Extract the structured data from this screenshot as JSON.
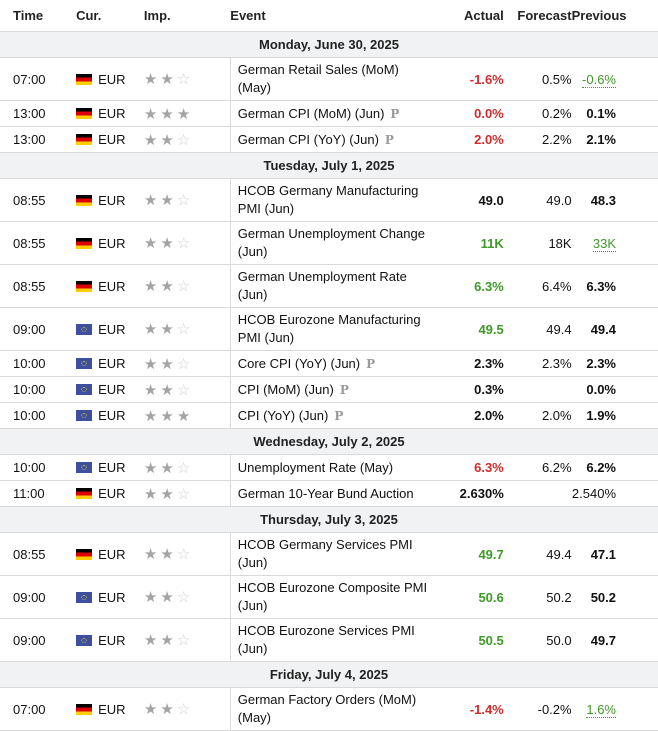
{
  "header": {
    "time": "Time",
    "currency": "Cur.",
    "importance": "Imp.",
    "event": "Event",
    "actual": "Actual",
    "forecast": "Forecast",
    "previous": "Previous"
  },
  "prelim_marker": "P",
  "days": [
    {
      "label": "Monday, June 30, 2025",
      "events": [
        {
          "time": "07:00",
          "flag": "de",
          "currency": "EUR",
          "stars": 2,
          "name": "German Retail Sales (MoM) (May)",
          "prelim": false,
          "actual": "-1.6%",
          "actual_color": "red",
          "forecast": "0.5%",
          "previous": "-0.6%",
          "previous_style": "green-dotted",
          "lines": 2
        },
        {
          "time": "13:00",
          "flag": "de",
          "currency": "EUR",
          "stars": 3,
          "name": "German CPI (MoM) (Jun)",
          "prelim": true,
          "actual": "0.0%",
          "actual_color": "red",
          "forecast": "0.2%",
          "previous": "0.1%",
          "previous_style": "bold",
          "lines": 1
        },
        {
          "time": "13:00",
          "flag": "de",
          "currency": "EUR",
          "stars": 2,
          "name": "German CPI (YoY) (Jun)",
          "prelim": true,
          "actual": "2.0%",
          "actual_color": "red",
          "forecast": "2.2%",
          "previous": "2.1%",
          "previous_style": "bold",
          "lines": 1
        }
      ]
    },
    {
      "label": "Tuesday, July 1, 2025",
      "events": [
        {
          "time": "08:55",
          "flag": "de",
          "currency": "EUR",
          "stars": 2,
          "name": "HCOB Germany Manufacturing PMI (Jun)",
          "prelim": false,
          "actual": "49.0",
          "actual_color": "black",
          "forecast": "49.0",
          "previous": "48.3",
          "previous_style": "bold",
          "lines": 2
        },
        {
          "time": "08:55",
          "flag": "de",
          "currency": "EUR",
          "stars": 2,
          "name": "German Unemployment Change (Jun)",
          "prelim": false,
          "actual": "11K",
          "actual_color": "green",
          "forecast": "18K",
          "previous": "33K",
          "previous_style": "green-dotted",
          "lines": 2
        },
        {
          "time": "08:55",
          "flag": "de",
          "currency": "EUR",
          "stars": 2,
          "name": "German Unemployment Rate (Jun)",
          "prelim": false,
          "actual": "6.3%",
          "actual_color": "green",
          "forecast": "6.4%",
          "previous": "6.3%",
          "previous_style": "bold",
          "lines": 2
        },
        {
          "time": "09:00",
          "flag": "eu",
          "currency": "EUR",
          "stars": 2,
          "name": "HCOB Eurozone Manufacturing PMI (Jun)",
          "prelim": false,
          "actual": "49.5",
          "actual_color": "green",
          "forecast": "49.4",
          "previous": "49.4",
          "previous_style": "bold",
          "lines": 2
        },
        {
          "time": "10:00",
          "flag": "eu",
          "currency": "EUR",
          "stars": 2,
          "name": "Core CPI (YoY) (Jun)",
          "prelim": true,
          "actual": "2.3%",
          "actual_color": "black",
          "forecast": "2.3%",
          "previous": "2.3%",
          "previous_style": "bold",
          "lines": 1
        },
        {
          "time": "10:00",
          "flag": "eu",
          "currency": "EUR",
          "stars": 2,
          "name": "CPI (MoM) (Jun)",
          "prelim": true,
          "actual": "0.3%",
          "actual_color": "black",
          "forecast": "",
          "previous": "0.0%",
          "previous_style": "bold",
          "lines": 1
        },
        {
          "time": "10:00",
          "flag": "eu",
          "currency": "EUR",
          "stars": 3,
          "name": "CPI (YoY) (Jun)",
          "prelim": true,
          "actual": "2.0%",
          "actual_color": "black",
          "forecast": "2.0%",
          "previous": "1.9%",
          "previous_style": "bold",
          "lines": 1
        }
      ]
    },
    {
      "label": "Wednesday, July 2, 2025",
      "events": [
        {
          "time": "10:00",
          "flag": "eu",
          "currency": "EUR",
          "stars": 2,
          "name": "Unemployment Rate (May)",
          "prelim": false,
          "actual": "6.3%",
          "actual_color": "red",
          "forecast": "6.2%",
          "previous": "6.2%",
          "previous_style": "bold",
          "lines": 1
        },
        {
          "time": "11:00",
          "flag": "de",
          "currency": "EUR",
          "stars": 2,
          "name": "German 10-Year Bund Auction",
          "prelim": false,
          "actual": "2.630%",
          "actual_color": "black",
          "forecast": "",
          "previous": "2.540%",
          "previous_style": "plain",
          "lines": 1
        }
      ]
    },
    {
      "label": "Thursday, July 3, 2025",
      "events": [
        {
          "time": "08:55",
          "flag": "de",
          "currency": "EUR",
          "stars": 2,
          "name": "HCOB Germany Services PMI (Jun)",
          "prelim": false,
          "actual": "49.7",
          "actual_color": "green",
          "forecast": "49.4",
          "previous": "47.1",
          "previous_style": "bold",
          "lines": 2
        },
        {
          "time": "09:00",
          "flag": "eu",
          "currency": "EUR",
          "stars": 2,
          "name": "HCOB Eurozone Composite PMI (Jun)",
          "prelim": false,
          "actual": "50.6",
          "actual_color": "green",
          "forecast": "50.2",
          "previous": "50.2",
          "previous_style": "bold",
          "lines": 2
        },
        {
          "time": "09:00",
          "flag": "eu",
          "currency": "EUR",
          "stars": 2,
          "name": "HCOB Eurozone Services PMI (Jun)",
          "prelim": false,
          "actual": "50.5",
          "actual_color": "green",
          "forecast": "50.0",
          "previous": "49.7",
          "previous_style": "bold",
          "lines": 2
        }
      ]
    },
    {
      "label": "Friday, July 4, 2025",
      "events": [
        {
          "time": "07:00",
          "flag": "de",
          "currency": "EUR",
          "stars": 2,
          "name": "German Factory Orders (MoM) (May)",
          "prelim": false,
          "actual": "-1.4%",
          "actual_color": "red",
          "forecast": "-0.2%",
          "previous": "1.6%",
          "previous_style": "green-dotted",
          "lines": 2
        }
      ]
    }
  ]
}
